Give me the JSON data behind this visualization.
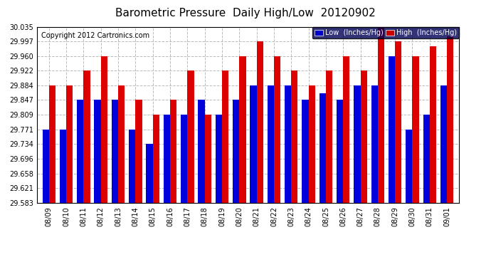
{
  "title": "Barometric Pressure  Daily High/Low  20120902",
  "copyright": "Copyright 2012 Cartronics.com",
  "legend_low": "Low  (Inches/Hg)",
  "legend_high": "High  (Inches/Hg)",
  "low_color": "#0000dd",
  "high_color": "#dd0000",
  "legend_low_bg": "#0000cc",
  "legend_high_bg": "#cc0000",
  "legend_frame_bg": "#000055",
  "background_color": "#ffffff",
  "grid_color": "#bbbbbb",
  "dates": [
    "08/09",
    "08/10",
    "08/11",
    "08/12",
    "08/13",
    "08/14",
    "08/15",
    "08/16",
    "08/17",
    "08/18",
    "08/19",
    "08/20",
    "08/21",
    "08/22",
    "08/23",
    "08/24",
    "08/25",
    "08/26",
    "08/27",
    "08/28",
    "08/29",
    "08/30",
    "08/31",
    "09/01"
  ],
  "low_values": [
    29.771,
    29.771,
    29.847,
    29.847,
    29.847,
    29.771,
    29.734,
    29.809,
    29.809,
    29.847,
    29.809,
    29.847,
    29.884,
    29.884,
    29.884,
    29.847,
    29.865,
    29.847,
    29.884,
    29.884,
    29.96,
    29.771,
    29.809,
    29.884
  ],
  "high_values": [
    29.884,
    29.884,
    29.922,
    29.96,
    29.884,
    29.847,
    29.809,
    29.847,
    29.922,
    29.809,
    29.922,
    29.96,
    29.997,
    29.96,
    29.922,
    29.884,
    29.922,
    29.96,
    29.922,
    30.035,
    29.997,
    29.96,
    29.984,
    30.01
  ],
  "ylim_min": 29.583,
  "ylim_max": 30.035,
  "yticks": [
    29.583,
    29.621,
    29.658,
    29.696,
    29.734,
    29.771,
    29.809,
    29.847,
    29.884,
    29.922,
    29.96,
    29.997,
    30.035
  ],
  "bar_width": 0.38,
  "title_fontsize": 11,
  "tick_fontsize": 7,
  "copyright_fontsize": 7,
  "legend_fontsize": 7
}
